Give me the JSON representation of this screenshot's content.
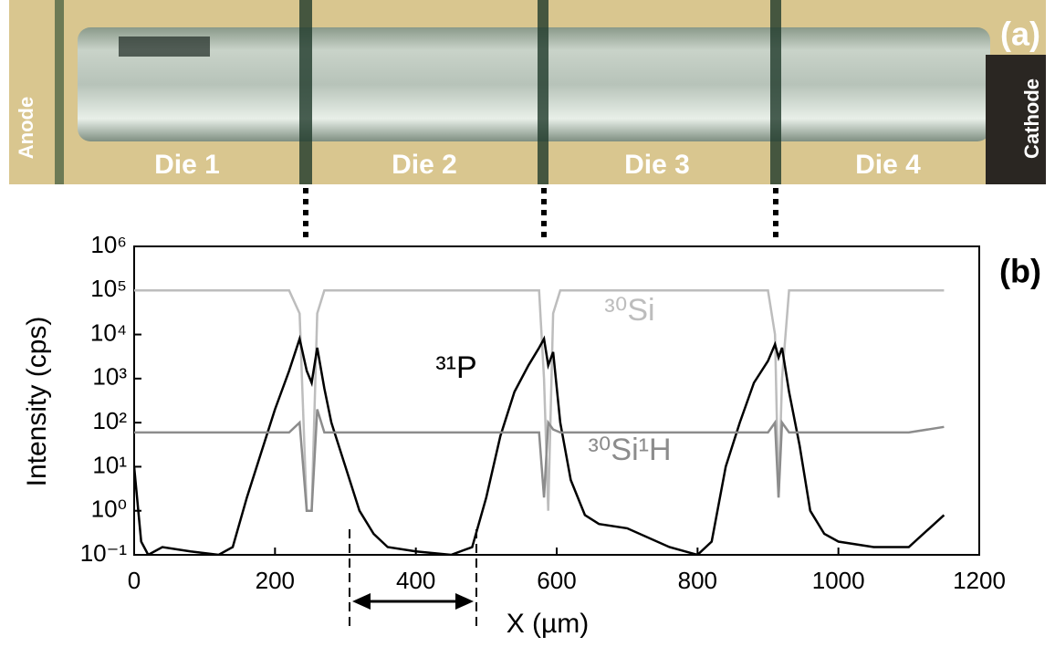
{
  "panel_a": {
    "label": "(a)",
    "anode": "Anode",
    "cathode": "Cathode",
    "dies": [
      "Die 1",
      "Die 2",
      "Die 3",
      "Die 4"
    ]
  },
  "chart_data": {
    "type": "line",
    "panel_label": "(b)",
    "x_label": "X (µm)",
    "y_label": "Intensity (cps)",
    "xlim": [
      0,
      1200
    ],
    "xticks": [
      0,
      200,
      400,
      600,
      800,
      1000,
      1200
    ],
    "ylim": [
      0.1,
      1000000
    ],
    "log_y": true,
    "yticks": [
      {
        "value": 0.1,
        "label": "10⁻¹"
      },
      {
        "value": 1,
        "label": "10⁰"
      },
      {
        "value": 10,
        "label": "10¹"
      },
      {
        "value": 100,
        "label": "10²"
      },
      {
        "value": 1000,
        "label": "10³"
      },
      {
        "value": 10000,
        "label": "10⁴"
      },
      {
        "value": 100000,
        "label": "10⁵"
      },
      {
        "value": 1000000,
        "label": "10⁶"
      }
    ],
    "x": [
      0,
      10,
      20,
      40,
      80,
      120,
      140,
      160,
      180,
      200,
      220,
      235,
      245,
      252,
      260,
      270,
      280,
      300,
      320,
      340,
      360,
      400,
      450,
      480,
      500,
      520,
      540,
      560,
      575,
      582,
      588,
      595,
      605,
      620,
      640,
      660,
      700,
      760,
      800,
      820,
      840,
      860,
      880,
      900,
      910,
      915,
      920,
      930,
      945,
      960,
      980,
      1000,
      1050,
      1100,
      1150
    ],
    "series": [
      {
        "name": "³⁰Si",
        "color": "#bdbdbd",
        "values": [
          100000,
          100000,
          100000,
          100000,
          100000,
          100000,
          100000,
          100000,
          100000,
          100000,
          100000,
          30000,
          1,
          1,
          30000,
          100000,
          100000,
          100000,
          100000,
          100000,
          100000,
          100000,
          100000,
          100000,
          100000,
          100000,
          100000,
          100000,
          100000,
          1000,
          1,
          30000,
          100000,
          100000,
          100000,
          100000,
          100000,
          100000,
          100000,
          100000,
          100000,
          100000,
          100000,
          100000,
          10000,
          2,
          1000,
          100000,
          100000,
          100000,
          100000,
          100000,
          100000,
          100000,
          100000
        ]
      },
      {
        "name": "³¹P",
        "color": "#000000",
        "values": [
          10,
          0.2,
          0.1,
          0.15,
          0.12,
          0.1,
          0.15,
          2,
          20,
          200,
          1500,
          8000,
          1500,
          800,
          5000,
          600,
          100,
          10,
          1,
          0.3,
          0.15,
          0.12,
          0.1,
          0.15,
          2,
          50,
          500,
          2000,
          5000,
          8000,
          2000,
          4000,
          100,
          5,
          0.8,
          0.5,
          0.4,
          0.15,
          0.1,
          0.2,
          10,
          100,
          800,
          2500,
          6000,
          3000,
          5000,
          500,
          30,
          1,
          0.3,
          0.2,
          0.15,
          0.15,
          0.8
        ]
      },
      {
        "name": "³⁰Si¹H",
        "color": "#8c8c8c",
        "values": [
          60,
          60,
          60,
          60,
          60,
          60,
          60,
          60,
          60,
          60,
          60,
          100,
          1,
          1,
          200,
          60,
          60,
          60,
          60,
          60,
          60,
          60,
          60,
          60,
          60,
          60,
          60,
          60,
          60,
          2,
          100,
          70,
          60,
          60,
          60,
          60,
          60,
          60,
          60,
          60,
          60,
          60,
          60,
          60,
          100,
          2,
          100,
          60,
          60,
          60,
          60,
          60,
          60,
          60,
          80
        ]
      }
    ]
  }
}
